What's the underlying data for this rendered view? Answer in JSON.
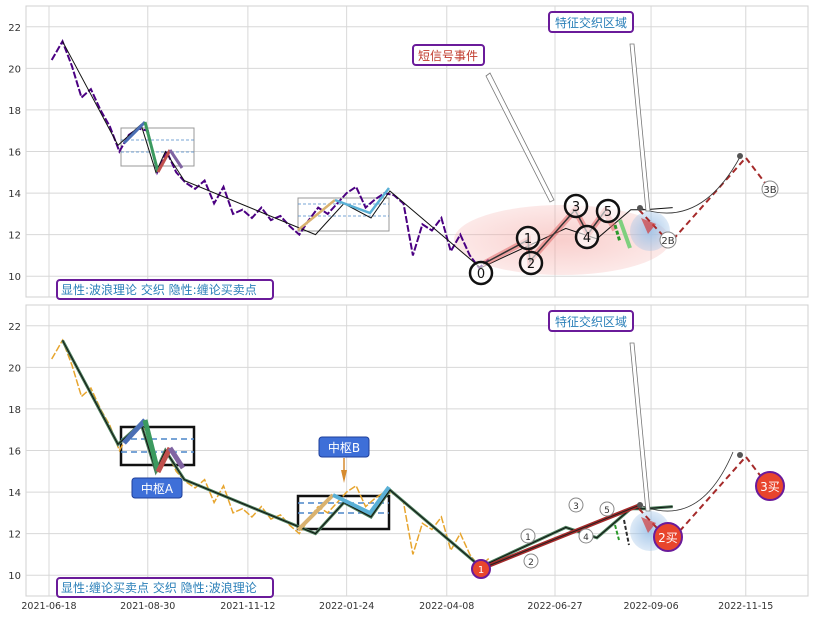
{
  "chart_data": [
    {
      "type": "line",
      "panel": "top",
      "ylim": [
        9,
        23
      ],
      "yticks": [
        "10",
        "12",
        "14",
        "16",
        "18",
        "20",
        "22"
      ],
      "grid": true,
      "legend_text": "显性:波浪理论 交织 隐性:缠论买卖点",
      "annotations": {
        "short_signal": "短信号事件",
        "feature_zone": "特征交织区域",
        "wave_labels": [
          "0",
          "1",
          "2",
          "3",
          "4",
          "5"
        ],
        "buy_labels": [
          "2B",
          "3B"
        ]
      },
      "price_series": [
        [
          "2021-06-20",
          20.4
        ],
        [
          "2021-06-28",
          21.3
        ],
        [
          "2021-07-05",
          20.1
        ],
        [
          "2021-07-12",
          18.6
        ],
        [
          "2021-07-19",
          19.0
        ],
        [
          "2021-07-26",
          18.0
        ],
        [
          "2021-08-02",
          17.2
        ],
        [
          "2021-08-09",
          16.0
        ],
        [
          "2021-08-16",
          16.8
        ],
        [
          "2021-08-23",
          17.1
        ],
        [
          "2021-08-30",
          17.0
        ],
        [
          "2021-09-06",
          15.0
        ],
        [
          "2021-09-13",
          16.0
        ],
        [
          "2021-09-20",
          15.0
        ],
        [
          "2021-09-27",
          14.5
        ],
        [
          "2021-10-04",
          14.2
        ],
        [
          "2021-10-11",
          14.6
        ],
        [
          "2021-10-18",
          13.5
        ],
        [
          "2021-10-25",
          14.3
        ],
        [
          "2021-11-01",
          13.0
        ],
        [
          "2021-11-08",
          13.2
        ],
        [
          "2021-11-15",
          12.8
        ],
        [
          "2021-11-22",
          13.3
        ],
        [
          "2021-11-29",
          12.7
        ],
        [
          "2021-12-06",
          12.9
        ],
        [
          "2021-12-13",
          12.4
        ],
        [
          "2021-12-20",
          12.0
        ],
        [
          "2021-12-27",
          12.7
        ],
        [
          "2022-01-03",
          13.3
        ],
        [
          "2022-01-10",
          13.0
        ],
        [
          "2022-01-17",
          13.5
        ],
        [
          "2022-01-24",
          14.0
        ],
        [
          "2022-01-31",
          14.3
        ],
        [
          "2022-02-07",
          13.3
        ],
        [
          "2022-02-14",
          13.7
        ],
        [
          "2022-02-21",
          14.0
        ],
        [
          "2022-02-28",
          13.9
        ],
        [
          "2022-03-07",
          13.5
        ],
        [
          "2022-03-14",
          11.0
        ],
        [
          "2022-03-21",
          12.5
        ],
        [
          "2022-03-28",
          12.2
        ],
        [
          "2022-04-04",
          12.8
        ],
        [
          "2022-04-11",
          11.2
        ],
        [
          "2022-04-18",
          12.0
        ],
        [
          "2022-04-25",
          11.0
        ],
        [
          "2022-05-02",
          10.4
        ],
        [
          "2022-05-09",
          10.8
        ]
      ],
      "zigzag": [
        [
          "2021-06-28",
          21.3
        ],
        [
          "2021-08-08",
          16.3
        ],
        [
          "2021-08-25",
          17.3
        ],
        [
          "2021-09-05",
          15.0
        ],
        [
          "2021-09-12",
          16.0
        ],
        [
          "2021-09-26",
          14.6
        ],
        [
          "2022-01-01",
          12.0
        ],
        [
          "2022-01-22",
          13.5
        ],
        [
          "2022-02-11",
          12.8
        ],
        [
          "2022-02-25",
          14.1
        ],
        [
          "2022-05-03",
          10.4
        ],
        [
          "2022-07-05",
          12.3
        ],
        [
          "2022-07-28",
          11.8
        ],
        [
          "2022-08-22",
          13.2
        ],
        [
          "2022-09-01",
          13.2
        ],
        [
          "2022-09-22",
          13.3
        ]
      ],
      "pivots": [
        {
          "label": "0",
          "date": "2022-05-03",
          "value": 10.0
        },
        {
          "label": "1",
          "date": "2022-06-10",
          "value": 11.7
        },
        {
          "label": "2",
          "date": "2022-06-11",
          "value": 10.6
        },
        {
          "label": "3",
          "date": "2022-07-14",
          "value": 13.3
        },
        {
          "label": "4",
          "date": "2022-07-27",
          "value": 11.8
        },
        {
          "label": "5",
          "date": "2022-08-12",
          "value": 13.1
        }
      ],
      "forecast": [
        [
          "2022-08-28",
          13.2
        ],
        [
          "2022-09-20",
          11.6
        ],
        [
          "2022-11-15",
          15.7
        ],
        [
          "2022-12-05",
          14.0
        ]
      ]
    },
    {
      "type": "line",
      "panel": "bottom",
      "ylim": [
        9,
        23
      ],
      "yticks": [
        "10",
        "12",
        "14",
        "16",
        "18",
        "20",
        "22"
      ],
      "grid": true,
      "legend_text": "显性:缠论买卖点 交织 隐性:波浪理论",
      "xticks": [
        "2021-06-18",
        "2021-08-30",
        "2021-11-12",
        "2022-01-24",
        "2022-04-08",
        "2022-06-27",
        "2022-09-06",
        "2022-11-15"
      ],
      "annotations": {
        "feature_zone": "特征交织区域",
        "pivot_a": "中枢A",
        "pivot_b": "中枢B",
        "buy1": "1",
        "buy2": "2买",
        "buy3": "3买",
        "wave_labels": [
          "1",
          "2",
          "3",
          "4",
          "5"
        ]
      }
    }
  ]
}
